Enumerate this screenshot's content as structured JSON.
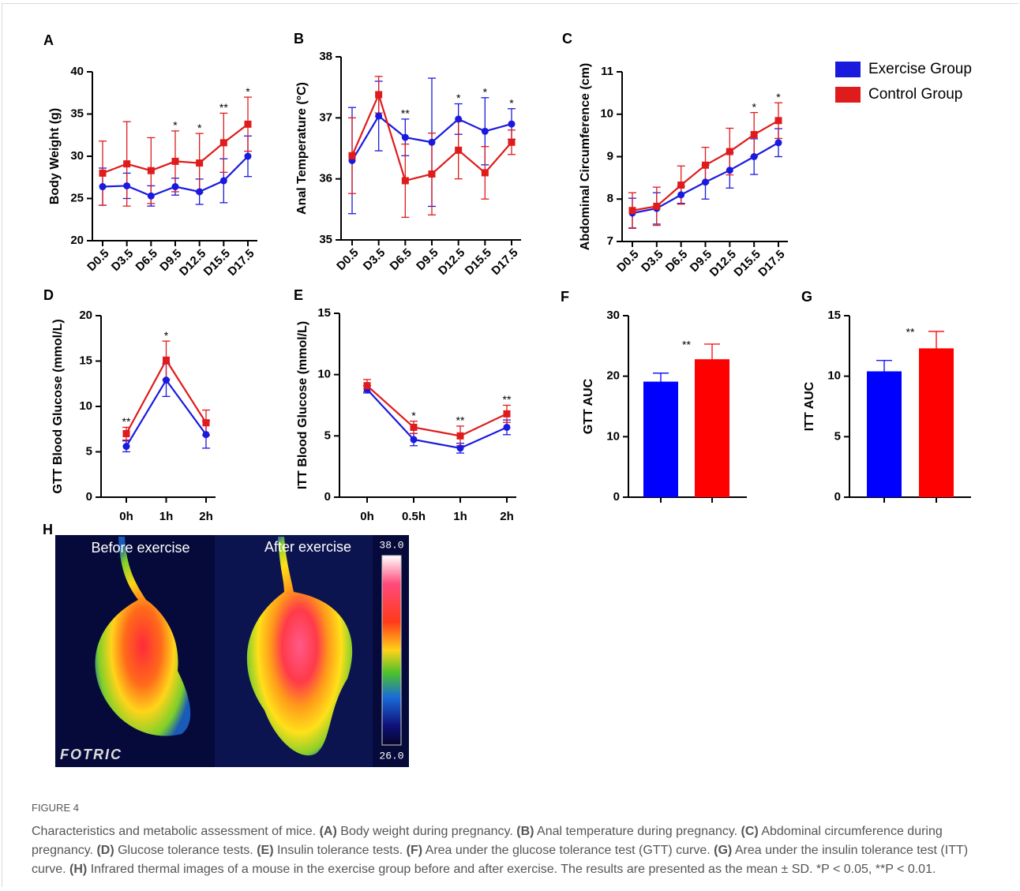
{
  "chart_data": [
    {
      "type": "line",
      "panel": "A",
      "y_label": "Body Weight (g)",
      "categories": [
        "D0.5",
        "D3.5",
        "D6.5",
        "D9.5",
        "D12.5",
        "D15.5",
        "D17.5"
      ],
      "ylim": [
        20,
        40
      ],
      "yticks": [
        20,
        25,
        30,
        35,
        40
      ],
      "series": [
        {
          "color": "#1a1adf",
          "values": [
            26.4,
            26.5,
            25.3,
            26.4,
            25.8,
            27.1,
            30.0
          ],
          "errors": [
            2.2,
            1.5,
            1.2,
            1.0,
            1.5,
            2.6,
            2.4
          ]
        },
        {
          "color": "#e01b1b",
          "values": [
            28.0,
            29.1,
            28.3,
            29.4,
            29.2,
            31.6,
            33.8
          ],
          "errors": [
            3.8,
            5.0,
            3.9,
            3.6,
            3.5,
            3.5,
            3.2
          ]
        }
      ],
      "significance": [
        null,
        null,
        null,
        "*",
        "*",
        "**",
        "*"
      ]
    },
    {
      "type": "line",
      "panel": "B",
      "y_label": "Anal Temperature (°C)",
      "categories": [
        "D0.5",
        "D3.5",
        "D6.5",
        "D9.5",
        "D12.5",
        "D15.5",
        "D17.5"
      ],
      "ylim": [
        35,
        38
      ],
      "yticks": [
        35,
        36,
        37,
        38
      ],
      "series": [
        {
          "color": "#1a1adf",
          "values": [
            36.3,
            37.03,
            36.68,
            36.6,
            36.98,
            36.78,
            36.9
          ],
          "errors": [
            0.87,
            0.57,
            0.3,
            1.05,
            0.25,
            0.55,
            0.25
          ]
        },
        {
          "color": "#e01b1b",
          "values": [
            36.38,
            37.38,
            35.97,
            36.08,
            36.47,
            36.1,
            36.6
          ],
          "errors": [
            0.62,
            0.3,
            0.6,
            0.67,
            0.47,
            0.43,
            0.2
          ]
        }
      ],
      "significance": [
        null,
        null,
        "**",
        null,
        "*",
        "*",
        "*"
      ]
    },
    {
      "type": "line",
      "panel": "C",
      "y_label": "Abdominal Circumference (cm)",
      "categories": [
        "D0.5",
        "D3.5",
        "D6.5",
        "D9.5",
        "D12.5",
        "D15.5",
        "D17.5"
      ],
      "ylim": [
        7,
        11
      ],
      "yticks": [
        7,
        8,
        9,
        10,
        11
      ],
      "series": [
        {
          "name": "Exercise Group",
          "color": "#1a1adf",
          "values": [
            7.67,
            7.78,
            8.1,
            8.4,
            8.68,
            9.0,
            9.33
          ],
          "errors": [
            0.35,
            0.37,
            0.2,
            0.4,
            0.42,
            0.42,
            0.33
          ]
        },
        {
          "name": "Control Group",
          "color": "#e01b1b",
          "values": [
            7.73,
            7.83,
            8.33,
            8.8,
            9.12,
            9.52,
            9.85
          ],
          "errors": [
            0.42,
            0.45,
            0.45,
            0.42,
            0.55,
            0.52,
            0.42
          ]
        }
      ],
      "significance": [
        null,
        null,
        null,
        null,
        null,
        "*",
        "*"
      ]
    },
    {
      "type": "line",
      "panel": "D",
      "y_label": "GTT Blood Glucose (mmol/L)",
      "categories": [
        "0h",
        "1h",
        "2h"
      ],
      "ylim": [
        0,
        20
      ],
      "yticks": [
        0,
        5,
        10,
        15,
        20
      ],
      "series": [
        {
          "color": "#1a1adf",
          "values": [
            5.6,
            12.9,
            6.9
          ],
          "errors": [
            0.6,
            1.8,
            1.5
          ]
        },
        {
          "color": "#e01b1b",
          "values": [
            7.0,
            15.1,
            8.2
          ],
          "errors": [
            0.7,
            2.1,
            1.4
          ]
        }
      ],
      "significance": [
        "**",
        "*",
        null
      ]
    },
    {
      "type": "line",
      "panel": "E",
      "y_label": "ITT Blood Glucose (mmol/L)",
      "categories": [
        "0h",
        "0.5h",
        "1h",
        "2h"
      ],
      "ylim": [
        0,
        15
      ],
      "yticks": [
        0,
        5,
        10,
        15
      ],
      "series": [
        {
          "color": "#1a1adf",
          "values": [
            8.8,
            4.7,
            4.0,
            5.7
          ],
          "errors": [
            0.3,
            0.5,
            0.4,
            0.6
          ]
        },
        {
          "color": "#e01b1b",
          "values": [
            9.1,
            5.7,
            5.0,
            6.8
          ],
          "errors": [
            0.5,
            0.5,
            0.8,
            0.7
          ]
        }
      ],
      "significance": [
        null,
        "*",
        "**",
        "**"
      ]
    },
    {
      "type": "bar",
      "panel": "F",
      "y_label": "GTT AUC",
      "ylim": [
        0,
        30
      ],
      "yticks": [
        0,
        10,
        20,
        30
      ],
      "values": [
        19.1,
        22.8
      ],
      "errors": [
        1.4,
        2.5
      ],
      "colors": [
        "#0000ff",
        "#ff0000"
      ],
      "significance": "**"
    },
    {
      "type": "bar",
      "panel": "G",
      "y_label": "ITT AUC",
      "ylim": [
        0,
        15
      ],
      "yticks": [
        0,
        5,
        10,
        15
      ],
      "values": [
        10.4,
        12.3
      ],
      "errors": [
        0.9,
        1.4
      ],
      "colors": [
        "#0000ff",
        "#ff0000"
      ],
      "significance": "**"
    }
  ],
  "thermal": {
    "panel": "H",
    "before": "Before exercise",
    "after": "After exercise",
    "scale_max": "38.0",
    "scale_min": "26.0",
    "brand": "FOTRIC"
  },
  "caption": {
    "label": "FIGURE 4",
    "intro": "Characteristics and metabolic assessment of mice.",
    "items": [
      {
        "key": "(A)",
        "text": "Body weight during pregnancy."
      },
      {
        "key": "(B)",
        "text": "Anal temperature during pregnancy."
      },
      {
        "key": "(C)",
        "text": "Abdominal circumference during pregnancy."
      },
      {
        "key": "(D)",
        "text": "Glucose tolerance tests."
      },
      {
        "key": "(E)",
        "text": "Insulin tolerance tests."
      },
      {
        "key": "(F)",
        "text": "Area under the glucose tolerance test (GTT) curve."
      },
      {
        "key": "(G)",
        "text": "Area under the insulin tolerance test (ITT) curve."
      },
      {
        "key": "(H)",
        "text": "Infrared thermal images of a mouse in the exercise group before and after exercise."
      }
    ],
    "outro": "The results are presented as the mean ± SD. *P < 0.05, **P < 0.01."
  }
}
